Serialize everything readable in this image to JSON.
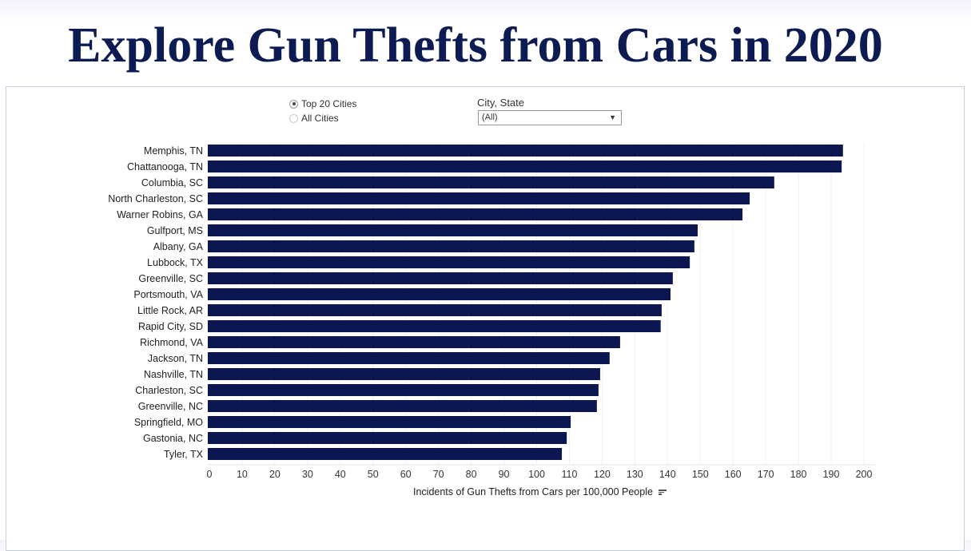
{
  "title": "Explore Gun Thefts from Cars in 2020",
  "filters": {
    "radio_options": [
      {
        "label": "Top 20 Cities",
        "selected": true
      },
      {
        "label": "All Cities",
        "selected": false
      }
    ],
    "dropdown_label": "City, State",
    "dropdown_value": "(All)"
  },
  "colors": {
    "bar": "#0c1650",
    "title": "#0d1b53"
  },
  "chart_data": {
    "type": "bar",
    "orientation": "horizontal",
    "categories": [
      "Memphis, TN",
      "Chattanooga, TN",
      "Columbia, SC",
      "North Charleston, SC",
      "Warner Robins, GA",
      "Gulfport, MS",
      "Albany, GA",
      "Lubbock, TX",
      "Greenville, SC",
      "Portsmouth, VA",
      "Little Rock, AR",
      "Rapid City, SD",
      "Richmond, VA",
      "Jackson, TN",
      "Nashville, TN",
      "Charleston, SC",
      "Greenville, NC",
      "Springfield, MO",
      "Gastonia, NC",
      "Tyler, TX"
    ],
    "values": [
      193.6,
      193.2,
      172.6,
      165.1,
      162.9,
      149.2,
      148.2,
      146.8,
      141.6,
      140.9,
      138.2,
      137.9,
      125.5,
      122.3,
      119.4,
      118.9,
      118.4,
      110.4,
      109.2,
      107.7
    ],
    "xlabel": "Incidents of Gun Thefts from Cars per 100,000 People",
    "xlim": [
      0,
      200
    ],
    "ticks": [
      "0",
      "10",
      "20",
      "30",
      "40",
      "50",
      "60",
      "70",
      "80",
      "90",
      "100",
      "110",
      "120",
      "130",
      "140",
      "150",
      "160",
      "170",
      "180",
      "190",
      "200"
    ],
    "grid": true
  }
}
